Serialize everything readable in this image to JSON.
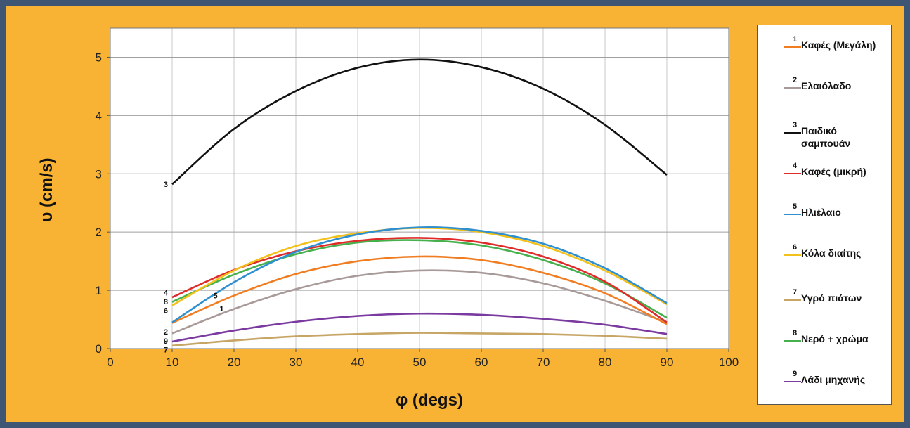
{
  "chart_data": {
    "type": "line",
    "xlabel": "φ (degs)",
    "ylabel": "υ (cm/s)",
    "xlim": [
      0,
      100
    ],
    "ylim": [
      0,
      5.5
    ],
    "xticks": [
      "0",
      "10",
      "20",
      "30",
      "40",
      "50",
      "60",
      "70",
      "80",
      "90",
      "100"
    ],
    "yticks": [
      "0",
      "1",
      "2",
      "3",
      "4",
      "5"
    ],
    "grid": true,
    "legend_position": "right",
    "x": [
      10,
      20,
      30,
      40,
      50,
      60,
      70,
      80,
      90
    ],
    "series": [
      {
        "id": "1",
        "name": "Καφές (Μεγάλη)",
        "color": "#f07d22",
        "values": [
          0.44,
          0.91,
          1.28,
          1.5,
          1.58,
          1.52,
          1.3,
          0.95,
          0.42
        ]
      },
      {
        "id": "2",
        "name": "Ελαιόλαδο",
        "color": "#a89a98",
        "values": [
          0.26,
          0.68,
          1.02,
          1.25,
          1.34,
          1.3,
          1.12,
          0.82,
          0.45
        ]
      },
      {
        "id": "3",
        "name": "Παιδικό σαμπουάν",
        "color": "#111111",
        "values": [
          2.82,
          3.77,
          4.42,
          4.82,
          4.96,
          4.83,
          4.46,
          3.84,
          2.98
        ]
      },
      {
        "id": "4",
        "name": "Καφές (μικρή)",
        "color": "#e02b2b",
        "values": [
          0.88,
          1.35,
          1.67,
          1.85,
          1.9,
          1.82,
          1.58,
          1.15,
          0.45
        ]
      },
      {
        "id": "5",
        "name": "Ηλιέλαιο",
        "color": "#2f8fcf",
        "values": [
          0.45,
          1.14,
          1.66,
          1.96,
          2.08,
          2.02,
          1.8,
          1.38,
          0.78
        ]
      },
      {
        "id": "6",
        "name": "Κόλα διαίτης",
        "color": "#f3c11c",
        "values": [
          0.74,
          1.34,
          1.76,
          1.98,
          2.07,
          2.0,
          1.76,
          1.34,
          0.76
        ]
      },
      {
        "id": "7",
        "name": "Υγρό πιάτων",
        "color": "#c6a565",
        "values": [
          0.05,
          0.14,
          0.21,
          0.25,
          0.27,
          0.26,
          0.25,
          0.22,
          0.17
        ]
      },
      {
        "id": "8",
        "name": "Νερό + χρώμα",
        "color": "#46b04d",
        "values": [
          0.8,
          1.27,
          1.62,
          1.82,
          1.86,
          1.77,
          1.52,
          1.12,
          0.53
        ]
      },
      {
        "id": "9",
        "name": "Λάδι μηχανής",
        "color": "#7a3aa0",
        "values": [
          0.12,
          0.31,
          0.46,
          0.56,
          0.6,
          0.58,
          0.51,
          0.41,
          0.25
        ]
      }
    ],
    "curve_labels": [
      {
        "text": "3",
        "x": 10,
        "y": 2.82
      },
      {
        "text": "4",
        "x": 10,
        "y": 0.96
      },
      {
        "text": "8",
        "x": 10,
        "y": 0.81
      },
      {
        "text": "6",
        "x": 10,
        "y": 0.66
      },
      {
        "text": "5",
        "x": 17,
        "y": 0.91
      },
      {
        "text": "1",
        "x": 18,
        "y": 0.69
      },
      {
        "text": "2",
        "x": 10,
        "y": 0.29
      },
      {
        "text": "9",
        "x": 10,
        "y": 0.13
      },
      {
        "text": "7",
        "x": 10,
        "y": -0.02
      }
    ]
  }
}
